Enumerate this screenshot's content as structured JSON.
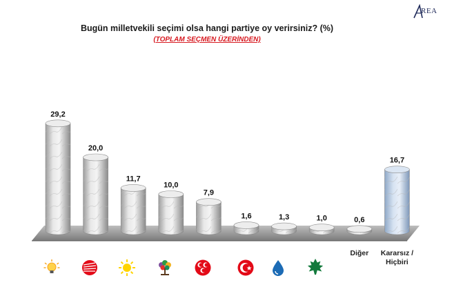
{
  "header": {
    "title": "Bugün milletvekili seçimi olsa hangi partiye oy verirsiniz? (%)",
    "subtitle": "(TOPLAM SEÇMEN ÜZERİNDEN)",
    "logo_text": "REA"
  },
  "chart_data": {
    "type": "bar",
    "title": "Bugün milletvekili seçimi olsa hangi partiye oy verirsiniz? (%)",
    "subtitle": "(TOPLAM SEÇMEN ÜZERİNDEN)",
    "categories": [
      "AK Parti",
      "CHP",
      "İYİ Parti",
      "HDP",
      "MHP",
      "Saadet Partisi",
      "DEVA Partisi",
      "Gelecek Partisi",
      "Diğer",
      "Kararsız / Hiçbiri"
    ],
    "category_labels": [
      "",
      "",
      "",
      "",
      "",
      "",
      "",
      "",
      "Diğer",
      "Kararsız / Hiçbiri"
    ],
    "values": [
      29.2,
      20.0,
      11.7,
      10.0,
      7.9,
      1.6,
      1.3,
      1.0,
      0.6,
      16.7
    ],
    "value_labels": [
      "29,2",
      "20,0",
      "11,7",
      "10,0",
      "7,9",
      "1,6",
      "1,3",
      "1,0",
      "0,6",
      "16,7"
    ],
    "bar_style": [
      "marble",
      "marble",
      "marble",
      "marble",
      "marble",
      "marble",
      "marble",
      "marble",
      "marble",
      "blue-marble"
    ],
    "ylim": [
      0,
      32
    ],
    "grid": false,
    "legend": "none"
  },
  "icons": [
    "akp-bulb-icon",
    "chp-six-arrows-icon",
    "iyi-sun-icon",
    "hdp-tree-icon",
    "mhp-crescents-icon",
    "saadet-crescent-icon",
    "deva-drop-icon",
    "gelecek-leaf-icon"
  ],
  "colors": {
    "akp": "#f7a21b",
    "chp": "#e30a17",
    "iyi": "#ffd400",
    "hdp": "#7e4e9c",
    "mhp": "#e30a17",
    "saadet": "#e30a17",
    "deva": "#1c6bb5",
    "gelecek": "#137a3c",
    "subtitle": "#d71920"
  }
}
